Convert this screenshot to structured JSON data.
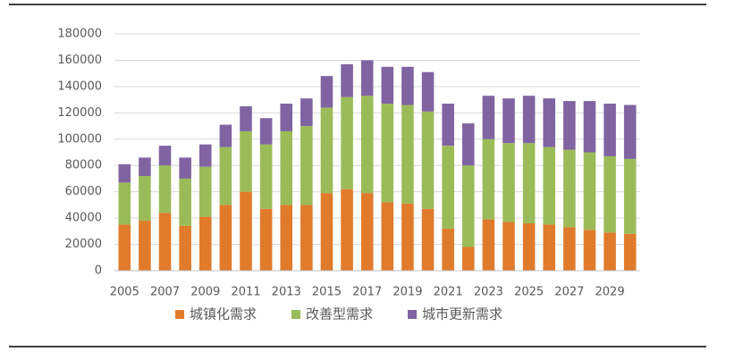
{
  "chart_data": {
    "type": "stacked_bar",
    "categories": [
      "2005",
      null,
      "2007",
      null,
      "2009",
      null,
      "2011",
      null,
      "2013",
      null,
      "2015",
      null,
      "2017",
      null,
      "2019",
      null,
      "2021",
      null,
      "2023",
      null,
      "2025",
      null,
      "2027",
      null,
      "2029",
      null
    ],
    "series": [
      {
        "name": "城镇化需求",
        "color": "#e07b2c",
        "values": [
          35000,
          38000,
          44000,
          34000,
          41000,
          50000,
          60000,
          47000,
          50000,
          50000,
          59000,
          62000,
          59000,
          52000,
          51000,
          47000,
          32000,
          18000,
          39000,
          37000,
          36000,
          35000,
          33000,
          31000,
          29000,
          28000
        ]
      },
      {
        "name": "改善型需求",
        "color": "#9bbb59",
        "values": [
          32000,
          34000,
          36000,
          36000,
          38000,
          44000,
          46000,
          49000,
          56000,
          60000,
          65000,
          70000,
          74000,
          75000,
          75000,
          74000,
          63000,
          62000,
          61000,
          60000,
          61000,
          59000,
          59000,
          59000,
          58000,
          57000
        ]
      },
      {
        "name": "城市更新需求",
        "color": "#8064a2",
        "values": [
          14000,
          14000,
          15000,
          16000,
          17000,
          17000,
          19000,
          20000,
          21000,
          21000,
          24000,
          25000,
          27000,
          28000,
          29000,
          30000,
          32000,
          32000,
          33000,
          34000,
          36000,
          37000,
          37000,
          39000,
          40000,
          41000
        ]
      }
    ],
    "ylim": [
      0,
      180000
    ],
    "yticks": [
      0,
      20000,
      40000,
      60000,
      80000,
      100000,
      120000,
      140000,
      160000,
      180000
    ],
    "grid": true,
    "legend": "bottom"
  }
}
